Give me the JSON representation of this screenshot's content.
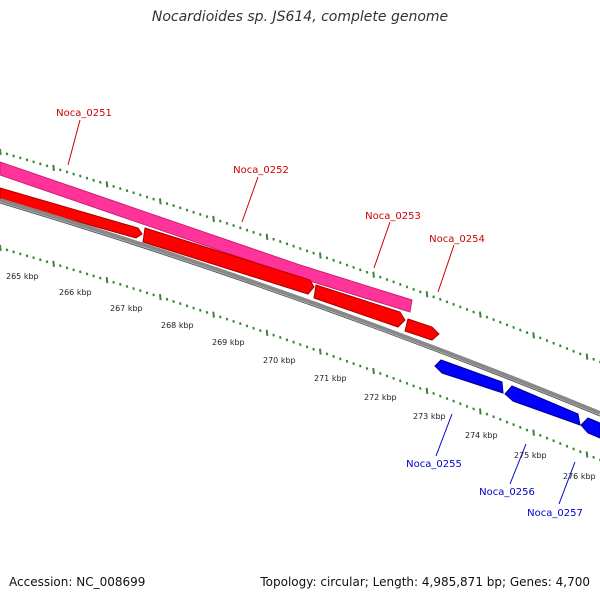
{
  "title": "Nocardioides sp. JS614, complete genome",
  "footer": {
    "accession": "Accession: NC_008699",
    "summary": "Topology: circular; Length: 4,985,871 bp; Genes: 4,700"
  },
  "colors": {
    "forward_gene": "#ff0000",
    "forward_highlight": "#ff3399",
    "reverse_gene": "#0000ff",
    "backbone": "#888888",
    "tick": "#2e8b2e",
    "label_forward": "#cc0000",
    "label_reverse": "#0000cc"
  },
  "scale_labels": [
    "265 kbp",
    "266 kbp",
    "267 kbp",
    "268 kbp",
    "269 kbp",
    "270 kbp",
    "271 kbp",
    "272 kbp",
    "273 kbp",
    "274 kbp",
    "275 kbp",
    "276 kbp"
  ],
  "genes": [
    {
      "name": "Noca_0251",
      "strand": "forward"
    },
    {
      "name": "Noca_0252",
      "strand": "forward"
    },
    {
      "name": "Noca_0253",
      "strand": "forward"
    },
    {
      "name": "Noca_0254",
      "strand": "forward"
    },
    {
      "name": "Noca_0255",
      "strand": "reverse"
    },
    {
      "name": "Noca_0256",
      "strand": "reverse"
    },
    {
      "name": "Noca_0257",
      "strand": "reverse"
    }
  ]
}
